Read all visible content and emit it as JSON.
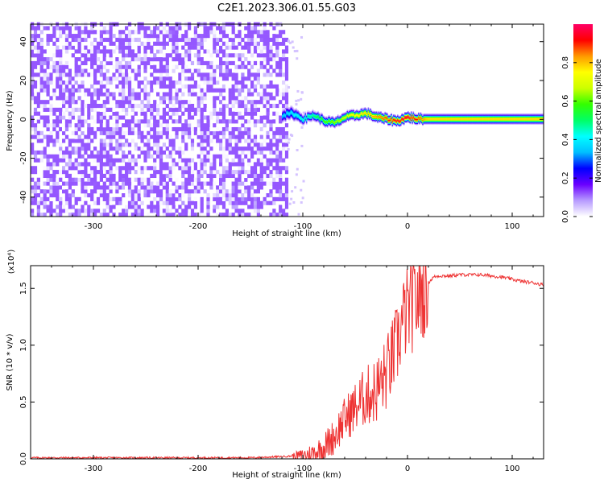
{
  "title": "C2E1.2023.306.01.55.G03",
  "chart_data": [
    {
      "type": "heatmap",
      "title": "C2E1.2023.306.01.55.G03",
      "xlabel": "Height of straight line (km)",
      "ylabel": "Frequency (Hz)",
      "xlim": [
        -360,
        130
      ],
      "ylim": [
        -50,
        49
      ],
      "x_ticks": [
        -300,
        -200,
        -100,
        0,
        100
      ],
      "y_ticks": [
        -40,
        -20,
        0,
        20,
        40
      ],
      "colorbar": {
        "label": "Normalized spectral amplitude",
        "range": [
          0,
          1
        ],
        "ticks": [
          "0.0",
          "0.2",
          "0.4",
          "0.6",
          "0.8"
        ],
        "colormap": [
          "#ffffff",
          "#b79bff",
          "#6a00ff",
          "#0000ff",
          "#00bfff",
          "#00ffff",
          "#00ff66",
          "#33ff00",
          "#ccff00",
          "#ffff00",
          "#ff9900",
          "#ff0000",
          "#ff0066"
        ]
      },
      "noise_region": {
        "x_range": [
          -360,
          -115
        ],
        "amplitude_range": [
          0.0,
          0.1
        ]
      },
      "signal_track": {
        "x": [
          -120,
          -110,
          -100,
          -90,
          -80,
          -70,
          -60,
          -50,
          -40,
          -30,
          -20,
          -10,
          0,
          10,
          20,
          50,
          100,
          130
        ],
        "frequency": [
          2,
          3,
          0,
          2,
          -1,
          -2,
          1,
          2,
          3,
          1,
          0,
          -1,
          1,
          0,
          0,
          0,
          0,
          0
        ],
        "peak_amplitude": [
          0.35,
          0.4,
          0.45,
          0.5,
          0.6,
          0.65,
          0.7,
          0.75,
          0.8,
          0.85,
          0.9,
          0.95,
          0.98,
          0.9,
          0.8,
          0.8,
          0.8,
          0.8
        ],
        "half_width_hz": [
          4,
          4,
          3,
          3,
          3,
          3,
          3,
          3,
          3,
          3,
          3,
          3,
          3,
          3,
          3,
          3,
          3,
          3
        ]
      }
    },
    {
      "type": "line",
      "xlabel": "Height of straight line (km)",
      "ylabel": "SNR (10 * v/v)",
      "multiplier_label": "(x10⁴)",
      "xlim": [
        -360,
        130
      ],
      "ylim": [
        0,
        1.7
      ],
      "x_ticks": [
        -300,
        -200,
        -100,
        0,
        100
      ],
      "y_ticks": [
        "0.0",
        "0.5",
        "1.0",
        "1.5"
      ],
      "color": "#ee3333",
      "series": [
        {
          "x": [
            -360,
            -300,
            -250,
            -200,
            -150,
            -120,
            -100,
            -90,
            -80,
            -70,
            -60,
            -50,
            -40,
            -30,
            -20,
            -10,
            -5,
            0,
            5,
            10,
            15,
            20,
            25,
            30,
            40,
            50,
            60,
            70,
            80,
            90,
            100,
            110,
            120,
            130
          ],
          "y": [
            0.01,
            0.01,
            0.01,
            0.01,
            0.01,
            0.02,
            0.03,
            0.05,
            0.1,
            0.2,
            0.35,
            0.45,
            0.55,
            0.6,
            0.75,
            1.0,
            1.2,
            1.3,
            1.35,
            1.42,
            1.5,
            1.55,
            1.6,
            1.61,
            1.61,
            1.62,
            1.62,
            1.62,
            1.61,
            1.6,
            1.58,
            1.56,
            1.55,
            1.53
          ]
        }
      ]
    }
  ]
}
